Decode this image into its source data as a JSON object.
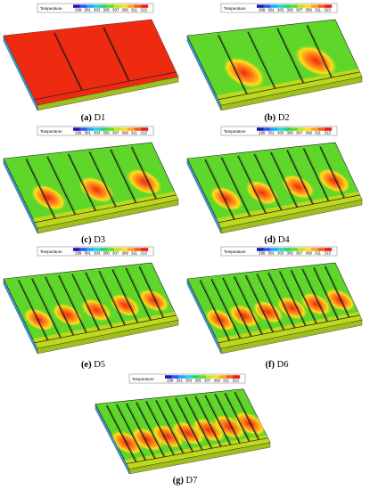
{
  "legend": {
    "title": "Temperature",
    "ticks": [
      "299",
      "301",
      "303",
      "305",
      "307",
      "309",
      "311",
      "313"
    ],
    "colors": [
      "#1a1ab0",
      "#2a55ff",
      "#19a8ff",
      "#19d9d9",
      "#1ad96b",
      "#5ee01a",
      "#c5e61a",
      "#ffe11a",
      "#ffa319",
      "#ff5a1a",
      "#e81a1a"
    ]
  },
  "panels": [
    {
      "letter": "(a)",
      "label": "D1",
      "fins": 2,
      "hot": 1.0
    },
    {
      "letter": "(b)",
      "label": "D2",
      "fins": 4,
      "hot": 0.7
    },
    {
      "letter": "(c)",
      "label": "D3",
      "fins": 6,
      "hot": 0.55
    },
    {
      "letter": "(d)",
      "label": "D4",
      "fins": 8,
      "hot": 0.5
    },
    {
      "letter": "(e)",
      "label": "D5",
      "fins": 10,
      "hot": 0.45
    },
    {
      "letter": "(f)",
      "label": "D6",
      "fins": 12,
      "hot": 0.45
    },
    {
      "letter": "(g)",
      "label": "D7",
      "fins": 14,
      "hot": 0.5
    }
  ],
  "colors": {
    "base": "#5fd62a",
    "warm": "#ffdf1a",
    "hot": "#ff8a1a",
    "veryhot": "#ee2a10",
    "edge": "#c9d81a",
    "side": "#9fbf1e"
  }
}
